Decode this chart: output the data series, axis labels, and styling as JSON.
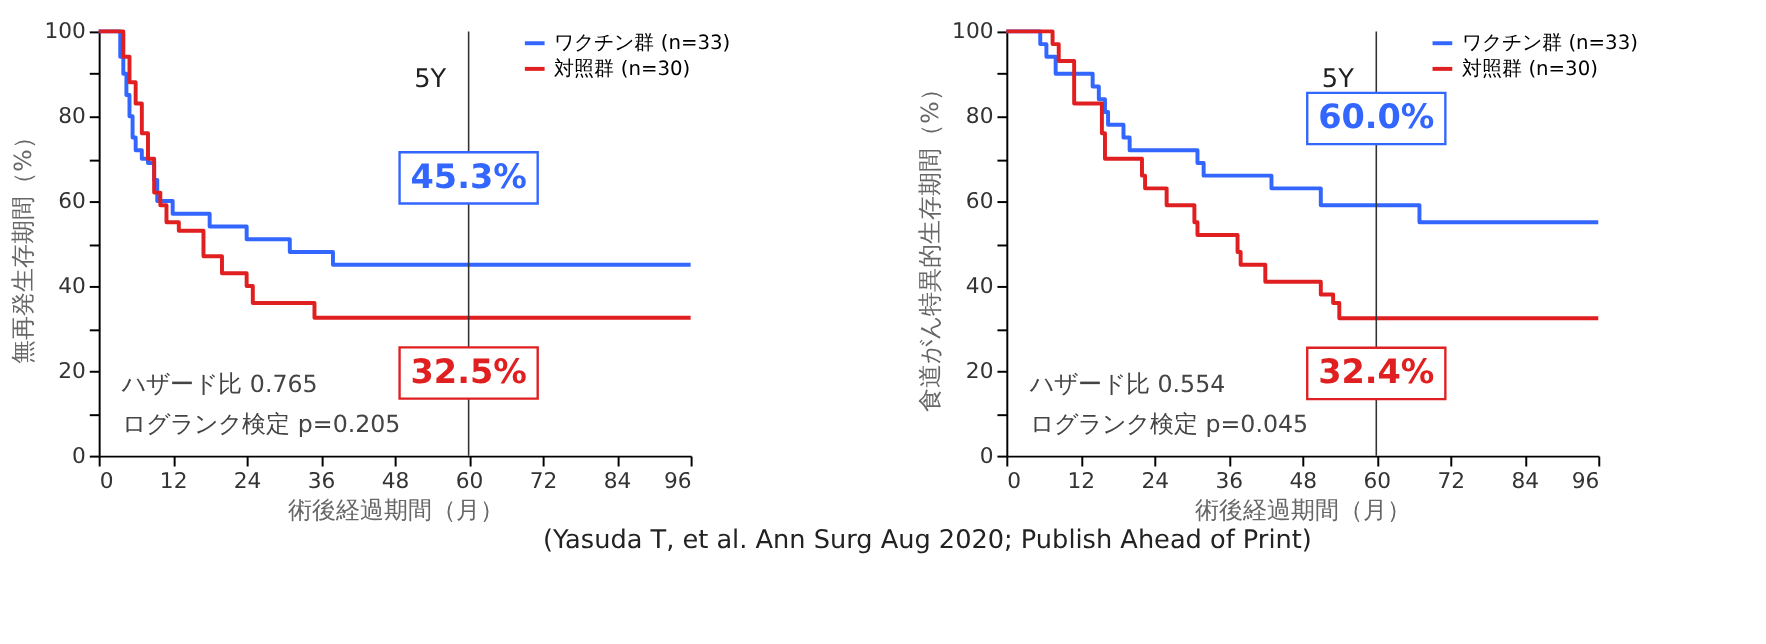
{
  "chart_data": [
    {
      "type": "step",
      "xlabel": "術後経過期間（月）",
      "ylabel": "無再発生存期間（%）",
      "xlim": [
        0,
        96
      ],
      "xticks": [
        0,
        12,
        24,
        36,
        48,
        60,
        72,
        84,
        96
      ],
      "ylim": [
        0,
        100
      ],
      "yticks": [
        0,
        {
          "value": 10,
          "label": null
        },
        20,
        {
          "value": 30,
          "label": null
        },
        40,
        {
          "value": 50,
          "label": null
        },
        60,
        {
          "value": 70,
          "label": null
        },
        80,
        {
          "value": 90,
          "label": null
        },
        100
      ],
      "legend": "top right",
      "grid": false,
      "series": [
        {
          "name": "ワクチン群 (n=33)",
          "color": "#3366ff",
          "x": [
            0,
            3,
            3.5,
            4,
            4.5,
            5,
            5.5,
            6,
            7,
            8,
            9,
            9.5,
            12,
            18,
            24,
            31,
            38,
            96
          ],
          "values": [
            100,
            100,
            94,
            90,
            85,
            80,
            75,
            72,
            70,
            69,
            65,
            60,
            57,
            54,
            51,
            48,
            45,
            45
          ]
        },
        {
          "name": "対照群 (n=30)",
          "color": "#e02020",
          "x": [
            0,
            3.5,
            4,
            5,
            6,
            7,
            8,
            9,
            10,
            11,
            13,
            17,
            20,
            24,
            25,
            35,
            96
          ],
          "values": [
            100,
            100,
            94,
            88,
            83,
            76,
            70,
            62,
            59,
            55,
            53,
            47,
            43,
            40,
            36,
            32.5,
            32.5
          ]
        }
      ],
      "ref_lines": [
        {
          "axis": "x",
          "value": 60,
          "label": null,
          "color": "#333333"
        }
      ],
      "annotations": [
        "5Y",
        "ハザード比 0.765",
        "ログランク検定 p=0.205",
        "45.3%",
        "32.5%"
      ]
    },
    {
      "type": "step",
      "xlabel": "術後経過期間（月）",
      "ylabel": "食道がん特異的生存期間（%）",
      "xlim": [
        0,
        96
      ],
      "xticks": [
        0,
        12,
        24,
        36,
        48,
        60,
        72,
        84,
        96
      ],
      "ylim": [
        0,
        100
      ],
      "yticks": [
        0,
        {
          "value": 10,
          "label": null
        },
        20,
        {
          "value": 30,
          "label": null
        },
        40,
        {
          "value": 50,
          "label": null
        },
        60,
        {
          "value": 70,
          "label": null
        },
        80,
        {
          "value": 90,
          "label": null
        },
        100
      ],
      "legend": "top right",
      "grid": false,
      "series": [
        {
          "name": "ワクチン群 (n=33)",
          "color": "#3366ff",
          "x": [
            0,
            5,
            5.5,
            6.5,
            8,
            14,
            15,
            16,
            16.5,
            19,
            20,
            31,
            32,
            43,
            51,
            67,
            96
          ],
          "values": [
            100,
            100,
            97,
            94,
            90,
            87,
            84,
            81,
            78,
            75,
            72,
            69,
            66,
            63,
            59,
            55,
            55
          ]
        },
        {
          "name": "対照群 (n=30)",
          "color": "#e02020",
          "x": [
            0,
            7,
            7.5,
            8.5,
            11,
            15.5,
            16,
            22,
            22.5,
            26,
            30.5,
            31,
            37.5,
            38,
            42,
            51,
            53,
            54,
            96
          ],
          "values": [
            100,
            100,
            97,
            93,
            83,
            76,
            70,
            66,
            63,
            59,
            55,
            52,
            48,
            45,
            41,
            38,
            36,
            32.4,
            32.4
          ]
        }
      ],
      "ref_lines": [
        {
          "axis": "x",
          "value": 60,
          "label": null,
          "color": "#333333"
        }
      ],
      "annotations": [
        "5Y",
        "ハザード比 0.554",
        "ログランク検定 p=0.045",
        "60.0%",
        "32.4%",
        "(Yasuda T, et al. Ann Surg Aug 2020; Publish Ahead of Print)"
      ]
    }
  ]
}
